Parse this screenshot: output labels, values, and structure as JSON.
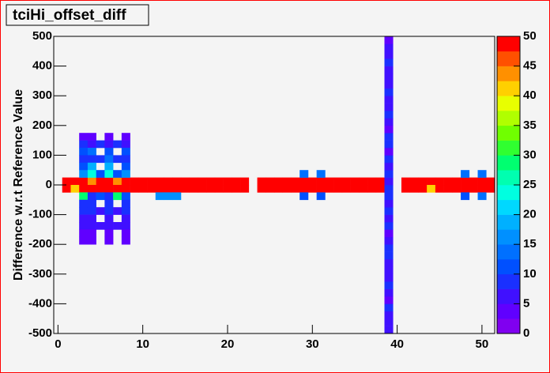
{
  "chart_data": {
    "type": "heatmap",
    "title": "tciHi_offset_diff",
    "ylabel": "Difference w.r.t Reference Value",
    "xlim": [
      -0.5,
      51.5
    ],
    "ylim": [
      -500,
      500
    ],
    "zlim": [
      0,
      50
    ],
    "xticks": [
      0,
      10,
      20,
      30,
      40,
      50
    ],
    "yticks": [
      -500,
      -400,
      -300,
      -200,
      -100,
      0,
      100,
      200,
      300,
      400,
      500
    ],
    "zticks": [
      0,
      5,
      10,
      15,
      20,
      25,
      30,
      35,
      40,
      45,
      50
    ],
    "palette": [
      "#8000f0",
      "#6000ff",
      "#4010ff",
      "#1a30ff",
      "#0050ff",
      "#0070ff",
      "#0090ff",
      "#00b0ff",
      "#00d8ff",
      "#00ffe0",
      "#00ffb0",
      "#00ff70",
      "#30ff30",
      "#70ff00",
      "#b0ff00",
      "#e8ff00",
      "#ffd000",
      "#ff9000",
      "#ff5000",
      "#ff0000"
    ],
    "cells": [
      [
        1,
        12.5,
        50
      ],
      [
        2,
        12.5,
        50
      ],
      [
        3,
        12.5,
        50
      ],
      [
        4,
        12.5,
        44
      ],
      [
        5,
        12.5,
        50
      ],
      [
        6,
        12.5,
        50
      ],
      [
        7,
        12.5,
        44
      ],
      [
        8,
        12.5,
        50
      ],
      [
        9,
        12.5,
        50
      ],
      [
        10,
        12.5,
        50
      ],
      [
        11,
        12.5,
        50
      ],
      [
        12,
        12.5,
        50
      ],
      [
        13,
        12.5,
        50
      ],
      [
        14,
        12.5,
        50
      ],
      [
        15,
        12.5,
        50
      ],
      [
        16,
        12.5,
        50
      ],
      [
        17,
        12.5,
        50
      ],
      [
        18,
        12.5,
        50
      ],
      [
        19,
        12.5,
        50
      ],
      [
        20,
        12.5,
        50
      ],
      [
        21,
        12.5,
        50
      ],
      [
        22,
        12.5,
        50
      ],
      [
        24,
        12.5,
        50
      ],
      [
        25,
        12.5,
        50
      ],
      [
        26,
        12.5,
        50
      ],
      [
        27,
        12.5,
        50
      ],
      [
        28,
        12.5,
        50
      ],
      [
        29,
        12.5,
        50
      ],
      [
        30,
        12.5,
        50
      ],
      [
        31,
        12.5,
        50
      ],
      [
        32,
        12.5,
        50
      ],
      [
        33,
        12.5,
        50
      ],
      [
        34,
        12.5,
        50
      ],
      [
        35,
        12.5,
        50
      ],
      [
        36,
        12.5,
        50
      ],
      [
        37,
        12.5,
        50
      ],
      [
        38,
        12.5,
        50
      ],
      [
        41,
        12.5,
        50
      ],
      [
        42,
        12.5,
        50
      ],
      [
        43,
        12.5,
        50
      ],
      [
        44,
        12.5,
        50
      ],
      [
        45,
        12.5,
        50
      ],
      [
        46,
        12.5,
        50
      ],
      [
        47,
        12.5,
        50
      ],
      [
        48,
        12.5,
        50
      ],
      [
        49,
        12.5,
        50
      ],
      [
        50,
        12.5,
        50
      ],
      [
        51,
        12.5,
        50
      ],
      [
        1,
        -12.5,
        50
      ],
      [
        2,
        -12.5,
        42
      ],
      [
        3,
        -12.5,
        50
      ],
      [
        4,
        -12.5,
        50
      ],
      [
        5,
        -12.5,
        50
      ],
      [
        6,
        -12.5,
        50
      ],
      [
        7,
        -12.5,
        50
      ],
      [
        8,
        -12.5,
        50
      ],
      [
        9,
        -12.5,
        50
      ],
      [
        10,
        -12.5,
        50
      ],
      [
        11,
        -12.5,
        50
      ],
      [
        12,
        -12.5,
        50
      ],
      [
        13,
        -12.5,
        50
      ],
      [
        14,
        -12.5,
        50
      ],
      [
        15,
        -12.5,
        50
      ],
      [
        16,
        -12.5,
        50
      ],
      [
        17,
        -12.5,
        50
      ],
      [
        18,
        -12.5,
        50
      ],
      [
        19,
        -12.5,
        50
      ],
      [
        20,
        -12.5,
        50
      ],
      [
        21,
        -12.5,
        50
      ],
      [
        22,
        -12.5,
        50
      ],
      [
        24,
        -12.5,
        50
      ],
      [
        25,
        -12.5,
        50
      ],
      [
        26,
        -12.5,
        50
      ],
      [
        27,
        -12.5,
        50
      ],
      [
        28,
        -12.5,
        50
      ],
      [
        29,
        -12.5,
        50
      ],
      [
        30,
        -12.5,
        50
      ],
      [
        31,
        -12.5,
        50
      ],
      [
        32,
        -12.5,
        50
      ],
      [
        33,
        -12.5,
        50
      ],
      [
        34,
        -12.5,
        50
      ],
      [
        35,
        -12.5,
        50
      ],
      [
        36,
        -12.5,
        50
      ],
      [
        37,
        -12.5,
        50
      ],
      [
        38,
        -12.5,
        50
      ],
      [
        41,
        -12.5,
        50
      ],
      [
        42,
        -12.5,
        50
      ],
      [
        43,
        -12.5,
        50
      ],
      [
        44,
        -12.5,
        42
      ],
      [
        45,
        -12.5,
        50
      ],
      [
        46,
        -12.5,
        50
      ],
      [
        47,
        -12.5,
        50
      ],
      [
        48,
        -12.5,
        50
      ],
      [
        49,
        -12.5,
        50
      ],
      [
        50,
        -12.5,
        50
      ],
      [
        51,
        -12.5,
        50
      ],
      [
        39,
        -487.5,
        5
      ],
      [
        39,
        -462.5,
        7
      ],
      [
        39,
        -437.5,
        6
      ],
      [
        39,
        -412.5,
        8
      ],
      [
        39,
        -387.5,
        4
      ],
      [
        39,
        -362.5,
        7
      ],
      [
        39,
        -337.5,
        8
      ],
      [
        39,
        -312.5,
        6
      ],
      [
        39,
        -287.5,
        7
      ],
      [
        39,
        -262.5,
        5
      ],
      [
        39,
        -237.5,
        8
      ],
      [
        39,
        -212.5,
        9
      ],
      [
        39,
        -187.5,
        7
      ],
      [
        39,
        -162.5,
        4
      ],
      [
        39,
        -137.5,
        8
      ],
      [
        39,
        -112.5,
        6
      ],
      [
        39,
        -87.5,
        8
      ],
      [
        39,
        -62.5,
        7
      ],
      [
        39,
        -37.5,
        9
      ],
      [
        39,
        -12.5,
        8
      ],
      [
        39,
        12.5,
        7
      ],
      [
        39,
        37.5,
        8
      ],
      [
        39,
        62.5,
        6
      ],
      [
        39,
        87.5,
        8
      ],
      [
        39,
        112.5,
        4
      ],
      [
        39,
        137.5,
        8
      ],
      [
        39,
        162.5,
        9
      ],
      [
        39,
        187.5,
        3
      ],
      [
        39,
        212.5,
        7
      ],
      [
        39,
        237.5,
        8
      ],
      [
        39,
        262.5,
        5
      ],
      [
        39,
        287.5,
        7
      ],
      [
        39,
        312.5,
        8
      ],
      [
        39,
        337.5,
        6
      ],
      [
        39,
        362.5,
        7
      ],
      [
        39,
        387.5,
        5
      ],
      [
        39,
        412.5,
        8
      ],
      [
        39,
        437.5,
        7
      ],
      [
        39,
        462.5,
        6
      ],
      [
        39,
        487.5,
        4
      ],
      [
        3,
        162.5,
        3
      ],
      [
        4,
        162.5,
        3
      ],
      [
        6,
        162.5,
        3
      ],
      [
        8,
        162.5,
        3
      ],
      [
        3,
        137.5,
        8
      ],
      [
        4,
        137.5,
        7
      ],
      [
        5,
        137.5,
        8
      ],
      [
        6,
        137.5,
        7
      ],
      [
        7,
        137.5,
        8
      ],
      [
        8,
        137.5,
        7
      ],
      [
        3,
        112.5,
        11
      ],
      [
        4,
        112.5,
        14
      ],
      [
        6,
        112.5,
        10
      ],
      [
        8,
        112.5,
        10
      ],
      [
        3,
        87.5,
        9
      ],
      [
        4,
        87.5,
        8
      ],
      [
        5,
        87.5,
        9
      ],
      [
        6,
        87.5,
        14
      ],
      [
        7,
        87.5,
        8
      ],
      [
        8,
        87.5,
        9
      ],
      [
        3,
        62.5,
        10
      ],
      [
        4,
        62.5,
        18
      ],
      [
        6,
        62.5,
        18
      ],
      [
        8,
        62.5,
        10
      ],
      [
        3,
        37.5,
        17
      ],
      [
        4,
        37.5,
        24
      ],
      [
        5,
        37.5,
        10
      ],
      [
        6,
        37.5,
        24
      ],
      [
        7,
        37.5,
        10
      ],
      [
        8,
        37.5,
        17
      ],
      [
        3,
        -37.5,
        28
      ],
      [
        4,
        -37.5,
        9
      ],
      [
        5,
        -37.5,
        10
      ],
      [
        6,
        -37.5,
        9
      ],
      [
        7,
        -37.5,
        28
      ],
      [
        8,
        -37.5,
        10
      ],
      [
        3,
        -62.5,
        9
      ],
      [
        4,
        -62.5,
        9
      ],
      [
        6,
        -62.5,
        9
      ],
      [
        8,
        -62.5,
        9
      ],
      [
        3,
        -87.5,
        8
      ],
      [
        4,
        -87.5,
        8
      ],
      [
        5,
        -87.5,
        7
      ],
      [
        6,
        -87.5,
        8
      ],
      [
        7,
        -87.5,
        7
      ],
      [
        8,
        -87.5,
        8
      ],
      [
        3,
        -112.5,
        7
      ],
      [
        4,
        -112.5,
        7
      ],
      [
        6,
        -112.5,
        7
      ],
      [
        8,
        -112.5,
        7
      ],
      [
        3,
        -137.5,
        5
      ],
      [
        4,
        -137.5,
        5
      ],
      [
        5,
        -137.5,
        5
      ],
      [
        6,
        -137.5,
        5
      ],
      [
        7,
        -137.5,
        5
      ],
      [
        8,
        -137.5,
        5
      ],
      [
        3,
        -162.5,
        3
      ],
      [
        4,
        -162.5,
        3
      ],
      [
        6,
        -162.5,
        3
      ],
      [
        8,
        -162.5,
        3
      ],
      [
        3,
        -187.5,
        3
      ],
      [
        4,
        -187.5,
        3
      ],
      [
        6,
        -187.5,
        3
      ],
      [
        8,
        -187.5,
        3
      ],
      [
        12,
        -37.5,
        15
      ],
      [
        13,
        -37.5,
        15
      ],
      [
        14,
        -37.5,
        17
      ],
      [
        29,
        37.5,
        14
      ],
      [
        31,
        37.5,
        14
      ],
      [
        29,
        -37.5,
        11
      ],
      [
        31,
        -37.5,
        11
      ],
      [
        48,
        37.5,
        14
      ],
      [
        50,
        37.5,
        14
      ],
      [
        48,
        -37.5,
        11
      ],
      [
        50,
        -37.5,
        14
      ]
    ]
  }
}
